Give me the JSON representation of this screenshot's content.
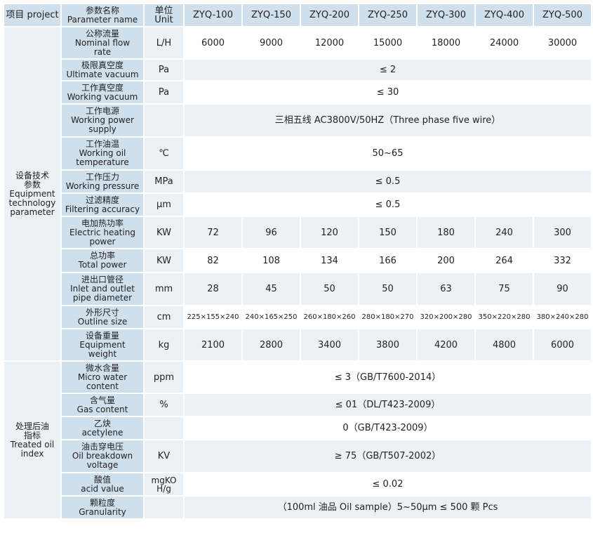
{
  "header": {
    "project": "项目 project",
    "param_cn": "参数名称",
    "param_en": "Parameter name",
    "unit_cn": "单位",
    "unit_en": "Unit",
    "models": [
      "ZYQ-100",
      "ZYQ-150",
      "ZYQ-200",
      "ZYQ-250",
      "ZYQ-300",
      "ZYQ-400",
      "ZYQ-500"
    ]
  },
  "groups": {
    "equipment": {
      "cn1": "设备技术",
      "cn2": "参数",
      "en1": "Equipment",
      "en2": "technology",
      "en3": "parameter"
    },
    "treated": {
      "cn1": "处理后油",
      "cn2": "指标",
      "en1": "Treated oil",
      "en2": "index"
    }
  },
  "rows": [
    {
      "cn": "公称流量",
      "en1": "Nominal flow",
      "en2": "rate",
      "unit": "L/H",
      "values": [
        "6000",
        "9000",
        "12000",
        "15000",
        "18000",
        "24000",
        "30000"
      ]
    },
    {
      "cn": "极限真空度",
      "en1": "Ultimate vacuum",
      "unit": "Pa",
      "span": "≤ 2"
    },
    {
      "cn": "工作真空度",
      "en1": "Working vacuum",
      "unit": "Pa",
      "span": "≤ 30"
    },
    {
      "cn": "工作电源",
      "en1": "Working power",
      "en2": "supply",
      "unit": "",
      "span": "三相五线 AC3800V/50HZ（Three phase five wire）"
    },
    {
      "cn": "工作油温",
      "en1": "Working oil",
      "en2": "temperature",
      "unit": "℃",
      "span": "50~65"
    },
    {
      "cn": "工作压力",
      "en1": "Working pressure",
      "unit": "MPa",
      "span": "≤ 0.5"
    },
    {
      "cn": "过滤精度",
      "en1": "Filtering accuracy",
      "unit": "μm",
      "span": "≤ 0.5"
    },
    {
      "cn": "电加热功率",
      "en1": "Electric heating",
      "en2": "power",
      "unit": "KW",
      "values": [
        "72",
        "96",
        "120",
        "150",
        "180",
        "240",
        "300"
      ]
    },
    {
      "cn": "总功率",
      "en1": "Total power",
      "unit": "KW",
      "values": [
        "82",
        "108",
        "134",
        "166",
        "200",
        "264",
        "332"
      ]
    },
    {
      "cn": "进出口管径",
      "en1": "Inlet and outlet",
      "en2": "pipe diameter",
      "unit": "mm",
      "values": [
        "28",
        "45",
        "50",
        "50",
        "63",
        "75",
        "90"
      ]
    },
    {
      "cn": "外形尺寸",
      "en1": "Outline size",
      "unit": "cm",
      "values": [
        "225×155×240",
        "240×165×250",
        "260×180×260",
        "280×180×270",
        "320×200×280",
        "350×220×280",
        "380×240×280"
      ]
    },
    {
      "cn": "设备重量",
      "en1": "Equipment",
      "en2": "weight",
      "unit": "kg",
      "values": [
        "2100",
        "2800",
        "3400",
        "3800",
        "4200",
        "4800",
        "6000"
      ]
    },
    {
      "cn": "微水含量",
      "en1": "Micro water",
      "en2": "content",
      "unit": "ppm",
      "span": "≤ 3（GB/T7600-2014）"
    },
    {
      "cn": "含气量",
      "en1": "Gas content",
      "unit": "%",
      "span": "≤ 01（DL/T423-2009）"
    },
    {
      "cn": "乙炔",
      "en1": "acetylene",
      "unit": "",
      "span": "0（GB/T423-2009）"
    },
    {
      "cn": "油击穿电压",
      "en1": "Oil breakdown",
      "en2": "voltage",
      "unit": "KV",
      "span": "≥ 75（GB/T507-2002）"
    },
    {
      "cn": "酸值",
      "en1": "acid value",
      "unit": "mgKO H/g",
      "span": "≤ 0.02"
    },
    {
      "cn": "颗粒度",
      "en1": "Granularity",
      "unit": "",
      "span": "（100ml 油品 Oil sample）5~50μm ≤ 500 颗 Pcs"
    }
  ]
}
